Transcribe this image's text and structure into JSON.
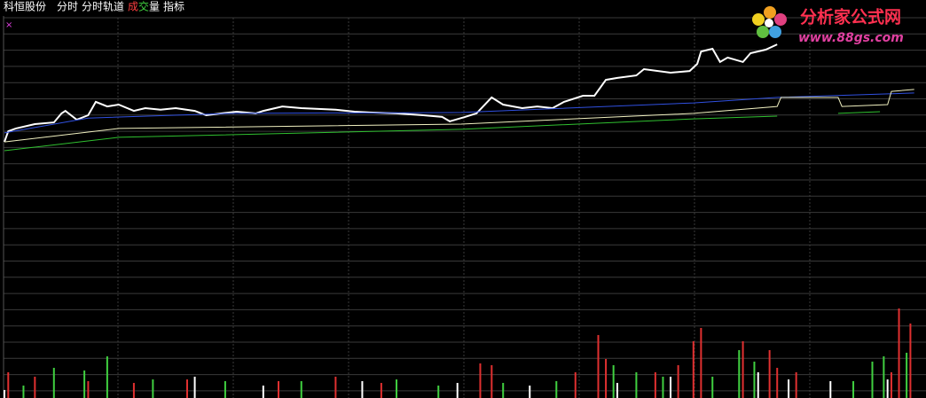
{
  "header": {
    "stock": "科恒股份",
    "tabs": [
      "分时",
      "分时轨道"
    ],
    "volume_tab": [
      "成",
      "交",
      "量"
    ],
    "indicator_tab": "指标",
    "marker": "×"
  },
  "logo": {
    "title": "分析家公式网",
    "url": "www.88gs.com"
  },
  "chart_data": [
    {
      "type": "line",
      "xlim": [
        0,
        240
      ],
      "ylim": [
        0,
        100
      ],
      "series": [
        {
          "color": "#ffffff",
          "x": [
            0,
            1,
            3,
            8,
            13,
            15,
            16,
            19,
            22,
            24,
            27,
            30,
            34,
            37,
            41,
            45,
            50,
            53,
            57,
            61,
            66,
            68,
            73,
            78,
            87,
            92,
            96,
            103,
            110,
            115,
            117,
            121,
            124,
            128,
            131,
            136,
            140,
            144,
            147,
            152,
            155,
            158,
            161,
            166,
            168,
            175,
            180,
            182,
            183,
            186,
            188,
            190,
            194,
            196,
            200,
            203
          ],
          "values": [
            54.8,
            58.7,
            59.7,
            61.3,
            61.9,
            65.2,
            66.1,
            62.9,
            64.5,
            69.4,
            67.7,
            68.4,
            66.1,
            67.1,
            66.5,
            67.1,
            66.1,
            64.5,
            65.2,
            65.8,
            65.2,
            66.1,
            67.7,
            67.1,
            66.5,
            65.8,
            65.5,
            65.2,
            64.5,
            63.9,
            62.3,
            63.9,
            65.2,
            71,
            68.4,
            67.1,
            67.7,
            67.1,
            69.4,
            71.6,
            71.6,
            77.4,
            78.1,
            79,
            81.3,
            80,
            80.6,
            83.2,
            87.7,
            88.7,
            83.9,
            85.5,
            83.9,
            87.1,
            88.4,
            90.3
          ]
        },
        {
          "color": "#3050e0",
          "x": [
            0,
            22,
            60,
            120,
            181,
            203,
            239
          ],
          "values": [
            58.1,
            63.5,
            65.2,
            65.5,
            69,
            71,
            72.6
          ]
        },
        {
          "color": "#f0f0c0",
          "x": [
            0,
            30,
            120,
            181,
            203,
            204,
            219,
            220,
            232,
            233,
            239
          ],
          "values": [
            54.8,
            59.7,
            61.3,
            65.2,
            67.7,
            71,
            71,
            67.7,
            68.4,
            73.2,
            73.9
          ]
        },
        {
          "color": "#30c030",
          "x": [
            0,
            30,
            120,
            181,
            203,
            204,
            219,
            230
          ],
          "values": [
            51.6,
            56.5,
            59.4,
            63.2,
            64.2,
            null,
            65.2,
            65.8
          ]
        }
      ]
    },
    {
      "type": "bar",
      "xlim": [
        0,
        240
      ],
      "ylim": [
        0,
        100
      ],
      "series": [
        {
          "color": "#e03030",
          "x": [
            1,
            8,
            22,
            34,
            48,
            72,
            87,
            99,
            125,
            128,
            150,
            156,
            158,
            171,
            177,
            181,
            183,
            194,
            201,
            203,
            208,
            233,
            235,
            238
          ],
          "values": [
            24.4,
            20.2,
            16,
            14.3,
            17.6,
            16,
            20.2,
            14.3,
            32.8,
            31.1,
            24.4,
            59.7,
            37,
            24.4,
            31.1,
            53.8,
            66.4,
            53.8,
            45.4,
            28.6,
            24.4,
            24.4,
            84.9,
            70.6
          ]
        },
        {
          "color": "#40d040",
          "x": [
            5,
            13,
            21,
            27,
            39,
            58,
            78,
            103,
            114,
            131,
            145,
            160,
            166,
            173,
            186,
            193,
            197,
            223,
            228,
            231,
            237
          ],
          "values": [
            11.8,
            28.6,
            26.1,
            39.5,
            17.6,
            16,
            16,
            17.6,
            11.8,
            14.3,
            16,
            31.1,
            24.4,
            20.2,
            20.2,
            45.4,
            34.5,
            16,
            34.5,
            39.5,
            42.9
          ]
        },
        {
          "color": "#ffffff",
          "x": [
            0,
            50,
            68,
            94,
            119,
            138,
            161,
            175,
            198,
            206,
            217,
            232
          ],
          "values": [
            7.6,
            20.2,
            11.8,
            16,
            14.3,
            11.8,
            14.3,
            20.2,
            24.4,
            17.6,
            16,
            17.6
          ]
        }
      ]
    }
  ]
}
